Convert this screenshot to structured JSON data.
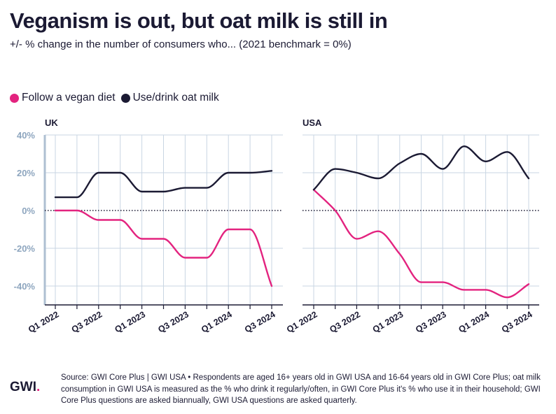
{
  "title": "Veganism is out, but oat milk is still in",
  "subtitle": "+/- % change in the number of consumers who... (2021 benchmark = 0%)",
  "logo": {
    "text": "GWI",
    "accent": "."
  },
  "source": "Source: GWI Core Plus | GWI USA • Respondents are aged 16+ years old in GWI USA and 16-64 years old in GWI Core Plus; oat milk consumption in GWI USA is measured as the % who drink it regularly/often, in GWI Core Plus it's % who use it in their household; GWI Core Plus questions are asked biannually, GWI USA questions are asked quarterly.",
  "colors": {
    "vegan": "#e3237f",
    "oat": "#1b1a33",
    "grid": "#c9d6e3",
    "axis": "#aebfd2",
    "tick_label": "#8ea6bf"
  },
  "chart_data": {
    "type": "line",
    "legend": [
      {
        "name": "Follow a vegan diet",
        "color": "#e3237f"
      },
      {
        "name": "Use/drink oat milk",
        "color": "#1b1a33"
      }
    ],
    "ylim": [
      -50,
      40
    ],
    "yticks": [
      40,
      20,
      0,
      -20,
      -40
    ],
    "ytick_labels": [
      "40%",
      "20%",
      "0%",
      "-20%",
      "-40%"
    ],
    "x": [
      "Q1 2022",
      "Q2 2022",
      "Q3 2022",
      "Q4 2022",
      "Q1 2023",
      "Q2 2023",
      "Q3 2023",
      "Q4 2023",
      "Q1 2024",
      "Q2 2024",
      "Q3 2024"
    ],
    "xtick_labels": [
      "Q1 2022",
      "Q3 2022",
      "Q1 2023",
      "Q3 2023",
      "Q1 2024",
      "Q3 2024"
    ],
    "panels": [
      {
        "label": "UK",
        "series": [
          {
            "name": "Follow a vegan diet",
            "values": [
              0,
              0,
              -5,
              -5,
              -15,
              -15,
              -25,
              -25,
              -10,
              -10,
              -40
            ]
          },
          {
            "name": "Use/drink oat milk",
            "values": [
              7,
              7,
              20,
              20,
              10,
              10,
              12,
              12,
              20,
              20,
              21
            ]
          }
        ]
      },
      {
        "label": "USA",
        "series": [
          {
            "name": "Follow a vegan diet",
            "values": [
              11,
              0,
              -15,
              -11,
              -23,
              -38,
              -38,
              -42,
              -42,
              -46,
              -39
            ]
          },
          {
            "name": "Use/drink oat milk",
            "values": [
              11,
              22,
              20,
              17,
              25,
              30,
              22,
              34,
              26,
              31,
              17
            ]
          }
        ]
      }
    ]
  }
}
